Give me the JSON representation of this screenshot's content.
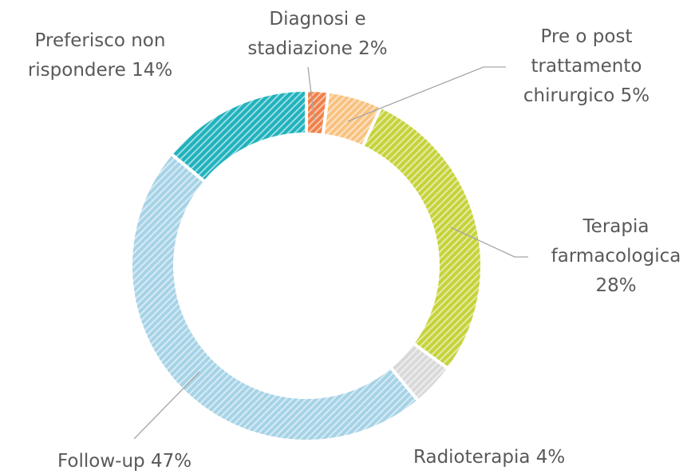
{
  "chart_data": {
    "type": "donut",
    "categories": [
      "Diagnosi e stadiazione",
      "Pre o post trattamento chirurgico",
      "Terapia farmacologica",
      "Radioterapia",
      "Follow-up",
      "Preferisco non rispondere"
    ],
    "values": [
      2,
      5,
      28,
      4,
      47,
      14
    ],
    "value_labels": [
      "2%",
      "5%",
      "28%",
      "4%",
      "47%",
      "14%"
    ],
    "colors": [
      "#f0804a",
      "#f9c27f",
      "#c5d33a",
      "#d9d9d9",
      "#a6d3e6",
      "#1fb2bd"
    ]
  }
}
